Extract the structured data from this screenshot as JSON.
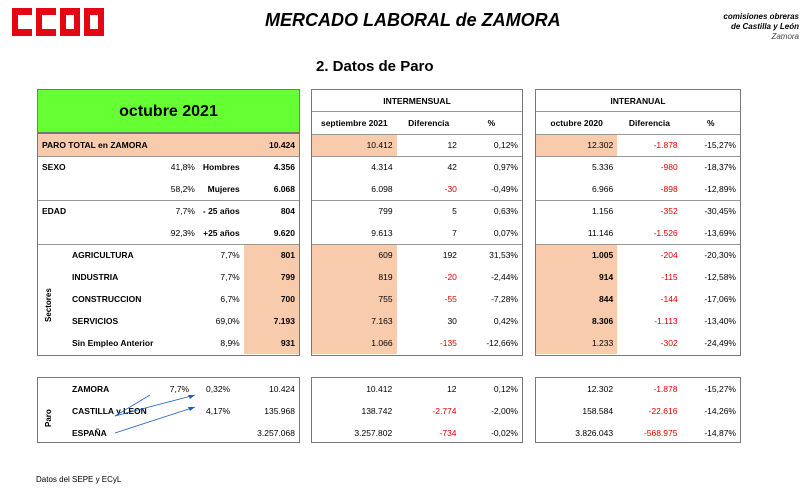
{
  "header": {
    "logo_text": "CCOO",
    "title": "MERCADO LABORAL de ZAMORA",
    "brand_line1": "comisiones obreras",
    "brand_line2": "de Castilla y León",
    "brand_line3": "Zamora",
    "section_title": "2.   Datos de Paro"
  },
  "left": {
    "period": "octubre 2021",
    "sectores_label": "Sectores",
    "paro_label": "Paro",
    "rows": [
      {
        "label": "PARO TOTAL en ZAMORA",
        "pct": "",
        "sub": "",
        "value": "10.424"
      },
      {
        "label": "SEXO",
        "pct": "41,8%",
        "sub": "Hombres",
        "value": "4.356"
      },
      {
        "label": "",
        "pct": "58,2%",
        "sub": "Mujeres",
        "value": "6.068"
      },
      {
        "label": "EDAD",
        "pct": "7,7%",
        "sub": "- 25 años",
        "value": "804"
      },
      {
        "label": "",
        "pct": "92,3%",
        "sub": "+25 años",
        "value": "9.620"
      },
      {
        "label": "AGRICULTURA",
        "pct": "7,7%",
        "sub": "",
        "value": "801"
      },
      {
        "label": "INDUSTRIA",
        "pct": "7,7%",
        "sub": "",
        "value": "799"
      },
      {
        "label": "CONSTRUCCION",
        "pct": "6,7%",
        "sub": "",
        "value": "700"
      },
      {
        "label": "SERVICIOS",
        "pct": "69,0%",
        "sub": "",
        "value": "7.193"
      },
      {
        "label": "Sin Empleo Anterior",
        "pct": "8,9%",
        "sub": "",
        "value": "931"
      }
    ],
    "bottom": [
      {
        "label": "ZAMORA",
        "p1": "7,7%",
        "p2": "0,32%",
        "value": "10.424"
      },
      {
        "label": "CASTILLA y LEON",
        "p1": "",
        "p2": "4,17%",
        "value": "135.968"
      },
      {
        "label": "ESPAÑA",
        "p1": "",
        "p2": "",
        "value": "3.257.068"
      }
    ]
  },
  "intermensual": {
    "title": "INTERMENSUAL",
    "headers": [
      "septiembre 2021",
      "Diferencia",
      "%"
    ],
    "rows": [
      [
        "10.412",
        "12",
        "0,12%"
      ],
      [
        "4.314",
        "42",
        "0,97%"
      ],
      [
        "6.098",
        "-30",
        "-0,49%"
      ],
      [
        "799",
        "5",
        "0,63%"
      ],
      [
        "9.613",
        "7",
        "0,07%"
      ],
      [
        "609",
        "192",
        "31,53%"
      ],
      [
        "819",
        "-20",
        "-2,44%"
      ],
      [
        "755",
        "-55",
        "-7,28%"
      ],
      [
        "7.163",
        "30",
        "0,42%"
      ],
      [
        "1.066",
        "-135",
        "-12,66%"
      ]
    ],
    "bottom": [
      [
        "10.412",
        "12",
        "0,12%"
      ],
      [
        "138.742",
        "-2.774",
        "-2,00%"
      ],
      [
        "3.257.802",
        "-734",
        "-0,02%"
      ]
    ]
  },
  "interanual": {
    "title": "INTERANUAL",
    "headers": [
      "octubre 2020",
      "Diferencia",
      "%"
    ],
    "rows": [
      [
        "12.302",
        "-1.878",
        "-15,27%"
      ],
      [
        "5.336",
        "-980",
        "-18,37%"
      ],
      [
        "6.966",
        "-898",
        "-12,89%"
      ],
      [
        "1.156",
        "-352",
        "-30,45%"
      ],
      [
        "11.146",
        "-1.526",
        "-13,69%"
      ],
      [
        "1.005",
        "-204",
        "-20,30%"
      ],
      [
        "914",
        "-115",
        "-12,58%"
      ],
      [
        "844",
        "-144",
        "-17,06%"
      ],
      [
        "8.306",
        "-1.113",
        "-13,40%"
      ],
      [
        "1.233",
        "-302",
        "-24,49%"
      ]
    ],
    "bottom": [
      [
        "12.302",
        "-1.878",
        "-15,27%"
      ],
      [
        "158.584",
        "-22.616",
        "-14,26%"
      ],
      [
        "3.826.043",
        "-568.975",
        "-14,87%"
      ]
    ]
  },
  "footer": "Datos del SEPE y ECyL"
}
